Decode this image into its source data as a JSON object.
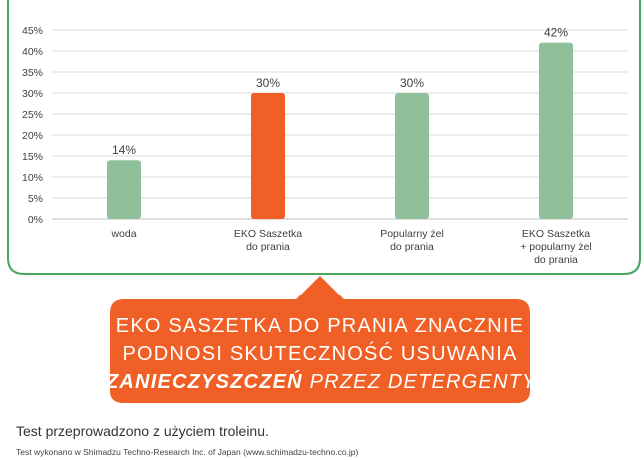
{
  "colors": {
    "green": "#8fc09a",
    "orange": "#f05f25",
    "frame": "#4aa55c",
    "grid": "#d9d9d9",
    "text": "#404040"
  },
  "chart_data": {
    "type": "bar",
    "categories": [
      [
        "woda"
      ],
      [
        "EKO Saszetka",
        "do prania"
      ],
      [
        "Popularny żel",
        "do prania"
      ],
      [
        "EKO Saszetka",
        "+ popularny żel",
        "do prania"
      ]
    ],
    "values": [
      14,
      30,
      30,
      42
    ],
    "value_labels": [
      "14%",
      "30%",
      "30%",
      "42%"
    ],
    "bar_colors": [
      "#8fc09a",
      "#f05f25",
      "#8fc09a",
      "#8fc09a"
    ],
    "ylim": [
      0,
      45
    ],
    "y_ticks": [
      0,
      5,
      10,
      15,
      20,
      25,
      30,
      35,
      40,
      45
    ],
    "y_tick_labels": [
      "0%",
      "5%",
      "10%",
      "15%",
      "20%",
      "25%",
      "30%",
      "35%",
      "40%",
      "45%"
    ],
    "grid": true,
    "title": "",
    "xlabel": "",
    "ylabel": ""
  },
  "callout": {
    "line1": "EKO SASZETKA DO PRANIA ZNACZNIE",
    "line2": "PODNOSI SKUTECZNOŚĆ USUWANIA",
    "line3_bold": "ZANIECZYSZCZEŃ",
    "line3_rest": " PRZEZ DETERGENTY"
  },
  "footnote": "Test przeprowadzono z użyciem troleinu.",
  "source": "Test wykonano w Shimadzu Techno-Research Inc. of Japan (www.schimadzu-techno.co.jp)"
}
